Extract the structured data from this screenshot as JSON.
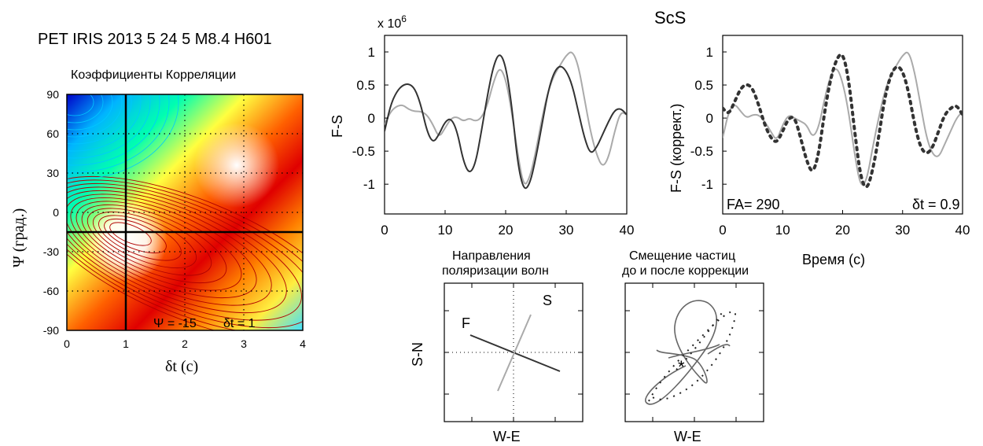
{
  "header": {
    "event": "PET IRIS 2013 5  24 5  M8.4 H601",
    "phase": "ScS"
  },
  "colors": {
    "trace_dark": "#333333",
    "trace_light": "#aaaaaa",
    "contour_warm": "#b00000",
    "contour_cool": "#00c8ff"
  },
  "chart_data": [
    {
      "id": "correlation_map",
      "type": "heatmap",
      "title": "Коэффициенты Корреляции",
      "xlabel": "δt (с)",
      "ylabel": "Ψ (град.)",
      "xlim": [
        0,
        4
      ],
      "ylim": [
        -90,
        90
      ],
      "x_ticks": [
        "0",
        "1",
        "2",
        "3",
        "4"
      ],
      "y_ticks": [
        "90",
        "60",
        "30",
        "0",
        "-30",
        "-60",
        "-90"
      ],
      "annotation_psi": "Ψ = -15",
      "annotation_dt": "δt = 1",
      "best_fit": {
        "psi": -15,
        "dt": 1
      },
      "grid": "dotted"
    },
    {
      "id": "fs_raw",
      "type": "line",
      "xlabel": "",
      "ylabel": "F-S",
      "scale_label": "x 10",
      "scale_exponent": "6",
      "xlim": [
        0,
        40
      ],
      "ylim": [
        -1.45,
        1.25
      ],
      "x_ticks": [
        "0",
        "10",
        "20",
        "30",
        "40"
      ],
      "y_ticks": [
        "1",
        "0.5",
        "0",
        "-0.5",
        "-1"
      ],
      "series": [
        {
          "color": "#aaaaaa",
          "points": [
            [
              0,
              -0.1
            ],
            [
              1,
              0.1
            ],
            [
              2,
              0.18
            ],
            [
              3,
              0.2
            ],
            [
              4,
              0.13
            ],
            [
              5,
              0.1
            ],
            [
              6,
              0.1
            ],
            [
              7,
              0.05
            ],
            [
              8,
              -0.1
            ],
            [
              9,
              -0.3
            ],
            [
              10,
              -0.15
            ],
            [
              11,
              0
            ],
            [
              12,
              0.02
            ],
            [
              13,
              -0.05
            ],
            [
              14,
              0
            ],
            [
              15,
              -0.05
            ],
            [
              16,
              0
            ],
            [
              17,
              0.2
            ],
            [
              18,
              0.55
            ],
            [
              19,
              0.78
            ],
            [
              20,
              0.6
            ],
            [
              21,
              0.1
            ],
            [
              22,
              -0.55
            ],
            [
              23,
              -1.05
            ],
            [
              24,
              -0.9
            ],
            [
              25,
              -0.5
            ],
            [
              26,
              0
            ],
            [
              27,
              0.4
            ],
            [
              28,
              0.65
            ],
            [
              29,
              0.8
            ],
            [
              30,
              0.95
            ],
            [
              31,
              1.02
            ],
            [
              32,
              0.8
            ],
            [
              33,
              0.3
            ],
            [
              34,
              -0.2
            ],
            [
              35,
              -0.55
            ],
            [
              36,
              -0.75
            ],
            [
              37,
              -0.6
            ],
            [
              38,
              -0.2
            ],
            [
              39,
              0.1
            ],
            [
              40,
              0.05
            ]
          ]
        },
        {
          "color": "#333333",
          "points": [
            [
              0,
              -0.2
            ],
            [
              1,
              0.2
            ],
            [
              2,
              0.4
            ],
            [
              3,
              0.5
            ],
            [
              4,
              0.52
            ],
            [
              5,
              0.45
            ],
            [
              6,
              0.2
            ],
            [
              7,
              -0.2
            ],
            [
              8,
              -0.38
            ],
            [
              9,
              -0.25
            ],
            [
              10,
              -0.05
            ],
            [
              11,
              0
            ],
            [
              12,
              -0.2
            ],
            [
              13,
              -0.65
            ],
            [
              14,
              -0.85
            ],
            [
              15,
              -0.7
            ],
            [
              16,
              -0.2
            ],
            [
              17,
              0.35
            ],
            [
              18,
              0.8
            ],
            [
              19,
              1
            ],
            [
              20,
              0.8
            ],
            [
              21,
              0.2
            ],
            [
              22,
              -0.7
            ],
            [
              23,
              -1.1
            ],
            [
              24,
              -1
            ],
            [
              25,
              -0.6
            ],
            [
              26,
              -0.1
            ],
            [
              27,
              0.4
            ],
            [
              28,
              0.7
            ],
            [
              29,
              0.8
            ],
            [
              30,
              0.72
            ],
            [
              31,
              0.5
            ],
            [
              32,
              0.1
            ],
            [
              33,
              -0.3
            ],
            [
              34,
              -0.55
            ],
            [
              35,
              -0.45
            ],
            [
              36,
              -0.25
            ],
            [
              37,
              -0.05
            ],
            [
              38,
              0.12
            ],
            [
              39,
              0.15
            ],
            [
              40,
              0.05
            ]
          ]
        }
      ]
    },
    {
      "id": "fs_corrected",
      "type": "line",
      "xlabel": "Время (с)",
      "ylabel": "F-S (коррект.)",
      "xlim": [
        0,
        40
      ],
      "ylim": [
        -1.45,
        1.25
      ],
      "x_ticks": [
        "0",
        "10",
        "20",
        "30",
        "40"
      ],
      "y_ticks": [
        "1",
        "0.5",
        "0",
        "-0.5",
        "-1"
      ],
      "fa_label": "FA= 290",
      "dt_label": "δt = 0.9",
      "series": [
        {
          "color": "#aaaaaa",
          "style": "solid",
          "points": [
            [
              0,
              -0.3
            ],
            [
              1,
              0.1
            ],
            [
              2,
              0.22
            ],
            [
              3,
              0.1
            ],
            [
              4,
              0.0
            ],
            [
              5,
              0.05
            ],
            [
              6,
              0.05
            ],
            [
              7,
              -0.05
            ],
            [
              8,
              -0.2
            ],
            [
              9,
              -0.35
            ],
            [
              10,
              -0.1
            ],
            [
              11,
              0.05
            ],
            [
              12,
              0
            ],
            [
              13,
              -0.05
            ],
            [
              14,
              -0.1
            ],
            [
              15,
              -0.3
            ],
            [
              16,
              -0.15
            ],
            [
              17,
              0.3
            ],
            [
              18,
              0.65
            ],
            [
              19,
              0.78
            ],
            [
              20,
              0.55
            ],
            [
              21,
              0.1
            ],
            [
              22,
              -0.55
            ],
            [
              23,
              -1.05
            ],
            [
              24,
              -0.95
            ],
            [
              25,
              -0.45
            ],
            [
              26,
              0
            ],
            [
              27,
              0.4
            ],
            [
              28,
              0.65
            ],
            [
              29,
              0.8
            ],
            [
              30,
              0.95
            ],
            [
              31,
              1.02
            ],
            [
              32,
              0.7
            ],
            [
              33,
              0.2
            ],
            [
              34,
              -0.3
            ],
            [
              35,
              -0.55
            ],
            [
              36,
              -0.6
            ],
            [
              37,
              -0.4
            ],
            [
              38,
              -0.2
            ],
            [
              39,
              0
            ],
            [
              40,
              0.1
            ]
          ]
        },
        {
          "color": "#333333",
          "style": "dotted",
          "points": [
            [
              0,
              0.15
            ],
            [
              1,
              0.05
            ],
            [
              2,
              0.25
            ],
            [
              3,
              0.45
            ],
            [
              4,
              0.52
            ],
            [
              5,
              0.45
            ],
            [
              6,
              0.2
            ],
            [
              7,
              -0.1
            ],
            [
              8,
              -0.3
            ],
            [
              9,
              -0.38
            ],
            [
              10,
              -0.2
            ],
            [
              11,
              0
            ],
            [
              12,
              0.02
            ],
            [
              13,
              -0.3
            ],
            [
              14,
              -0.65
            ],
            [
              15,
              -0.85
            ],
            [
              16,
              -0.55
            ],
            [
              17,
              0.1
            ],
            [
              18,
              0.6
            ],
            [
              19,
              0.9
            ],
            [
              20,
              1
            ],
            [
              21,
              0.6
            ],
            [
              22,
              -0.2
            ],
            [
              23,
              -0.9
            ],
            [
              24,
              -1.1
            ],
            [
              25,
              -0.8
            ],
            [
              26,
              -0.3
            ],
            [
              27,
              0.3
            ],
            [
              28,
              0.65
            ],
            [
              29,
              0.8
            ],
            [
              30,
              0.72
            ],
            [
              31,
              0.4
            ],
            [
              32,
              -0.1
            ],
            [
              33,
              -0.45
            ],
            [
              34,
              -0.55
            ],
            [
              35,
              -0.45
            ],
            [
              36,
              -0.2
            ],
            [
              37,
              0.05
            ],
            [
              38,
              0.15
            ],
            [
              39,
              0.2
            ],
            [
              40,
              0.05
            ]
          ]
        }
      ]
    },
    {
      "id": "polarization",
      "type": "scatter",
      "title_line1": "Направления",
      "title_line2": "поляризации волн",
      "xlabel": "W-E",
      "ylabel": "S-N",
      "fast_label": "F",
      "slow_label": "S",
      "fast_azimuth_deg": -65,
      "slow_azimuth_deg": 25
    },
    {
      "id": "particle_motion",
      "type": "line",
      "title_line1": "Смещение частиц",
      "title_line2": "до и после коррекции",
      "xlabel": "W-E",
      "ylabel": ""
    }
  ]
}
